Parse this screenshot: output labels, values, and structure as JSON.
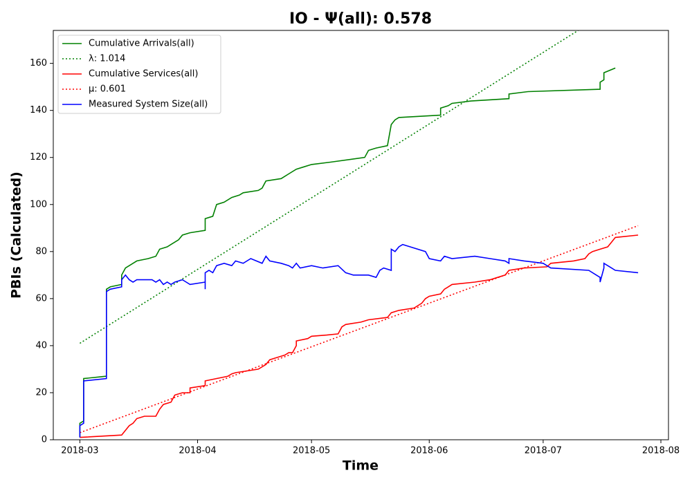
{
  "chart_data": {
    "type": "line",
    "title": "IO -  Ψ(all): 0.578",
    "xlabel": "Time",
    "ylabel": "PBIs (Calculated)",
    "xlim": [
      "2018-02-22",
      "2018-08-03"
    ],
    "xticks": [
      "2018-03",
      "2018-04",
      "2018-05",
      "2018-06",
      "2018-07",
      "2018-08"
    ],
    "ylim": [
      0,
      174
    ],
    "yticks": [
      0,
      20,
      40,
      60,
      80,
      100,
      120,
      140,
      160
    ],
    "legend": "upper left",
    "series": [
      {
        "name": "Cumulative Arrivals(all)",
        "color": "#008000",
        "linestyle": "solid",
        "x": [
          "2018-03-01",
          "2018-03-01",
          "2018-03-02",
          "2018-03-02",
          "2018-03-08",
          "2018-03-08",
          "2018-03-09",
          "2018-03-12",
          "2018-03-12",
          "2018-03-13",
          "2018-03-14",
          "2018-03-16",
          "2018-03-19",
          "2018-03-21",
          "2018-03-22",
          "2018-03-24",
          "2018-03-25",
          "2018-03-27",
          "2018-03-28",
          "2018-03-30",
          "2018-04-03",
          "2018-04-03",
          "2018-04-05",
          "2018-04-06",
          "2018-04-08",
          "2018-04-10",
          "2018-04-12",
          "2018-04-13",
          "2018-04-17",
          "2018-04-18",
          "2018-04-19",
          "2018-04-23",
          "2018-04-25",
          "2018-04-27",
          "2018-04-29",
          "2018-05-01",
          "2018-05-06",
          "2018-05-15",
          "2018-05-16",
          "2018-05-18",
          "2018-05-21",
          "2018-05-22",
          "2018-05-23",
          "2018-05-24",
          "2018-06-04",
          "2018-06-04",
          "2018-06-06",
          "2018-06-07",
          "2018-06-12",
          "2018-06-22",
          "2018-06-22",
          "2018-06-27",
          "2018-07-16",
          "2018-07-16",
          "2018-07-17",
          "2018-07-17",
          "2018-07-20"
        ],
        "values": [
          1,
          7,
          8,
          26,
          27,
          64,
          65,
          66,
          70,
          73,
          74,
          76,
          77,
          78,
          81,
          82,
          83,
          85,
          87,
          88,
          89,
          94,
          95,
          100,
          101,
          103,
          104,
          105,
          106,
          107,
          110,
          111,
          113,
          115,
          116,
          117,
          118,
          120,
          123,
          124,
          125,
          134,
          136,
          137,
          138,
          141,
          142,
          143,
          144,
          145,
          147,
          148,
          149,
          152,
          153,
          156,
          158
        ]
      },
      {
        "name": "λ: 1.014",
        "color": "#008000",
        "linestyle": "dotted",
        "x": [
          "2018-03-01",
          "2018-07-26"
        ],
        "values": [
          41,
          190
        ]
      },
      {
        "name": "Cumulative Services(all)",
        "color": "#ff0000",
        "linestyle": "solid",
        "x": [
          "2018-03-01",
          "2018-03-12",
          "2018-03-13",
          "2018-03-14",
          "2018-03-15",
          "2018-03-16",
          "2018-03-18",
          "2018-03-21",
          "2018-03-22",
          "2018-03-23",
          "2018-03-25",
          "2018-03-26",
          "2018-03-28",
          "2018-03-30",
          "2018-03-30",
          "2018-04-03",
          "2018-04-03",
          "2018-04-09",
          "2018-04-10",
          "2018-04-11",
          "2018-04-17",
          "2018-04-19",
          "2018-04-20",
          "2018-04-22",
          "2018-04-24",
          "2018-04-25",
          "2018-04-26",
          "2018-04-27",
          "2018-04-27",
          "2018-04-30",
          "2018-05-01",
          "2018-05-05",
          "2018-05-08",
          "2018-05-09",
          "2018-05-10",
          "2018-05-14",
          "2018-05-16",
          "2018-05-21",
          "2018-05-22",
          "2018-05-24",
          "2018-05-28",
          "2018-05-30",
          "2018-05-31",
          "2018-06-01",
          "2018-06-04",
          "2018-06-05",
          "2018-06-06",
          "2018-06-07",
          "2018-06-13",
          "2018-06-17",
          "2018-06-19",
          "2018-06-21",
          "2018-06-22",
          "2018-06-26",
          "2018-07-02",
          "2018-07-03",
          "2018-07-09",
          "2018-07-12",
          "2018-07-13",
          "2018-07-14",
          "2018-07-16",
          "2018-07-18",
          "2018-07-19",
          "2018-07-20",
          "2018-07-26"
        ],
        "values": [
          1,
          2,
          4,
          6,
          7,
          9,
          10,
          10,
          13,
          15,
          16,
          19,
          20,
          20,
          22,
          23,
          25,
          27,
          28,
          28.5,
          30,
          32,
          34,
          35,
          36,
          37,
          37,
          40,
          42,
          43,
          44,
          44.5,
          45,
          48,
          49,
          50,
          51,
          52,
          54,
          55,
          56,
          58,
          60,
          61,
          62,
          64,
          65,
          66,
          67,
          68,
          69,
          70,
          72,
          73,
          73.5,
          75,
          76,
          77,
          79,
          80,
          81,
          82,
          84,
          86,
          87
        ]
      },
      {
        "name": "μ: 0.601",
        "color": "#ff0000",
        "linestyle": "dotted",
        "x": [
          "2018-03-01",
          "2018-07-26"
        ],
        "values": [
          3,
          91
        ]
      },
      {
        "name": "Measured System Size(all)",
        "color": "#0000ff",
        "linestyle": "solid",
        "x": [
          "2018-03-01",
          "2018-03-01",
          "2018-03-02",
          "2018-03-02",
          "2018-03-08",
          "2018-03-08",
          "2018-03-09",
          "2018-03-12",
          "2018-03-12",
          "2018-03-13",
          "2018-03-14",
          "2018-03-15",
          "2018-03-16",
          "2018-03-20",
          "2018-03-21",
          "2018-03-22",
          "2018-03-23",
          "2018-03-24",
          "2018-03-25",
          "2018-03-26",
          "2018-03-28",
          "2018-03-29",
          "2018-03-30",
          "2018-04-03",
          "2018-04-03",
          "2018-04-03",
          "2018-04-04",
          "2018-04-05",
          "2018-04-06",
          "2018-04-08",
          "2018-04-10",
          "2018-04-11",
          "2018-04-13",
          "2018-04-15",
          "2018-04-18",
          "2018-04-19",
          "2018-04-20",
          "2018-04-23",
          "2018-04-25",
          "2018-04-26",
          "2018-04-27",
          "2018-04-28",
          "2018-05-01",
          "2018-05-04",
          "2018-05-08",
          "2018-05-10",
          "2018-05-12",
          "2018-05-14",
          "2018-05-16",
          "2018-05-18",
          "2018-05-19",
          "2018-05-20",
          "2018-05-22",
          "2018-05-22",
          "2018-05-23",
          "2018-05-24",
          "2018-05-25",
          "2018-05-27",
          "2018-05-31",
          "2018-06-01",
          "2018-06-04",
          "2018-06-05",
          "2018-06-07",
          "2018-06-13",
          "2018-06-17",
          "2018-06-21",
          "2018-06-22",
          "2018-06-22",
          "2018-06-26",
          "2018-07-01",
          "2018-07-03",
          "2018-07-13",
          "2018-07-15",
          "2018-07-16",
          "2018-07-16",
          "2018-07-17",
          "2018-07-17",
          "2018-07-18",
          "2018-07-19",
          "2018-07-20",
          "2018-07-26"
        ],
        "values": [
          1,
          6,
          7,
          25,
          26,
          63,
          64,
          65,
          68,
          70,
          68,
          67,
          68,
          68,
          67,
          68,
          66,
          67,
          66,
          67,
          68,
          67,
          66,
          67,
          64,
          71,
          72,
          71,
          74,
          75,
          74,
          76,
          75,
          77,
          75,
          78,
          76,
          75,
          74,
          73,
          75,
          73,
          74,
          73,
          74,
          71,
          70,
          70,
          70,
          69,
          72,
          73,
          72,
          81,
          80,
          82,
          83,
          82,
          80,
          77,
          76,
          78,
          77,
          78,
          77,
          76,
          75,
          77,
          76,
          75,
          73,
          72,
          70,
          69,
          67,
          73,
          75,
          74,
          73,
          72,
          71
        ]
      }
    ]
  }
}
